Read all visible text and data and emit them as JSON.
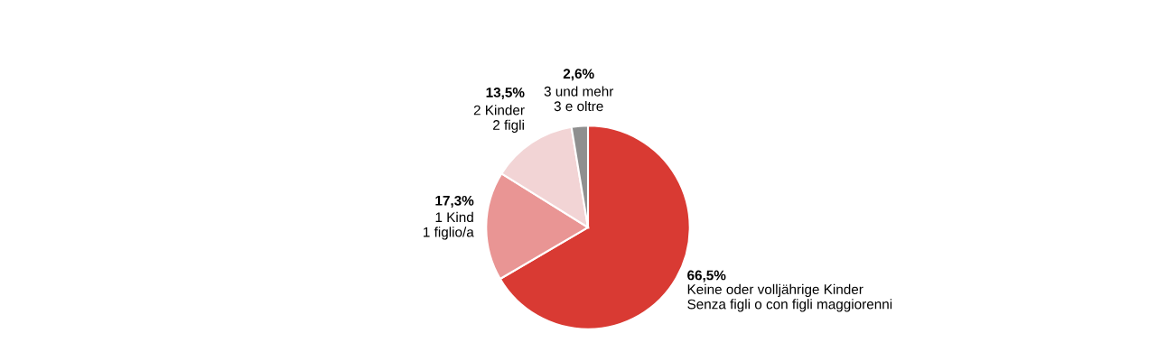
{
  "chart_data": {
    "type": "pie",
    "categories": [
      "Keine oder volljährige Kinder\nSenza figli o con figli maggiorenni",
      "1 Kind\n1 figlio/a",
      "2 Kinder\n2 figli",
      "3 und mehr\n3 e oltre"
    ],
    "values": [
      66.5,
      17.3,
      13.5,
      2.6
    ],
    "value_labels": [
      "66,5%",
      "17,3%",
      "13,5%",
      "2,6%"
    ],
    "colors": [
      "#d93a33",
      "#e99594",
      "#f2d4d5",
      "#8f8f8f"
    ],
    "legend": false
  }
}
